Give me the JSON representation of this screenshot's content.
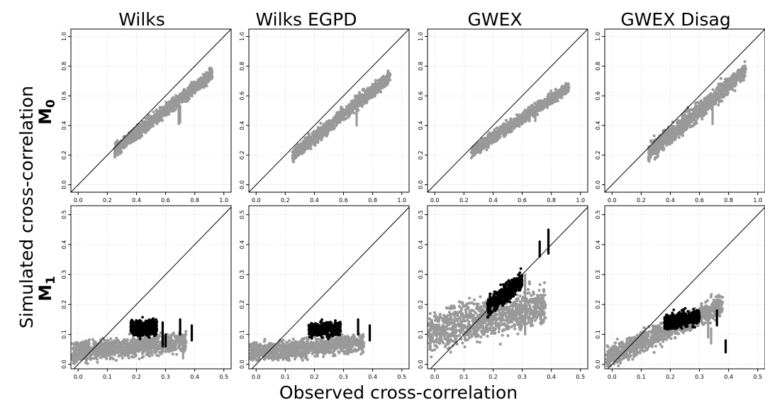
{
  "figure": {
    "column_titles": [
      "Wilks",
      "Wilks  EGPD",
      "GWEX",
      "GWEX  Disag"
    ],
    "row_labels": [
      {
        "base": "M",
        "sub": "0"
      },
      {
        "base": "M",
        "sub": "1"
      }
    ],
    "xlabel": "Observed cross-correlation",
    "ylabel": "Simulated cross-correlation"
  },
  "colors": {
    "gray_points": "#999999",
    "black_points": "#000000",
    "grid": "#d3d3d3",
    "identity_line": "#000000"
  },
  "chart_data": [
    {
      "type": "scatter",
      "panel": "Wilks / M0",
      "xlim": [
        -0.05,
        1.05
      ],
      "ylim": [
        -0.05,
        1.05
      ],
      "xticks": [
        "0.0",
        "0.2",
        "0.4",
        "0.6",
        "0.8",
        "1.0"
      ],
      "yticks": [
        "0.0",
        "0.2",
        "0.4",
        "0.6",
        "0.8",
        "1.0"
      ],
      "identity_line": true,
      "grid": true,
      "gray_cloud": {
        "x": [
          0.25,
          0.92
        ],
        "y_center": [
          0.23,
          0.75
        ],
        "y_halfwidth": 0.05
      },
      "gray_strips": [
        {
          "x": 0.69,
          "y": [
            0.41,
            0.52
          ]
        },
        {
          "x": 0.7,
          "y": [
            0.42,
            0.53
          ]
        }
      ],
      "black_cloud": null,
      "black_strips": []
    },
    {
      "type": "scatter",
      "panel": "Wilks  EGPD / M0",
      "xlim": [
        -0.05,
        1.05
      ],
      "ylim": [
        -0.05,
        1.05
      ],
      "xticks": [
        "0.0",
        "0.2",
        "0.4",
        "0.6",
        "0.8",
        "1.0"
      ],
      "yticks": [
        "0.0",
        "0.2",
        "0.4",
        "0.6",
        "0.8",
        "1.0"
      ],
      "identity_line": true,
      "grid": true,
      "gray_cloud": {
        "x": [
          0.25,
          0.92
        ],
        "y_center": [
          0.2,
          0.73
        ],
        "y_halfwidth": 0.05
      },
      "gray_strips": [
        {
          "x": 0.69,
          "y": [
            0.4,
            0.5
          ]
        }
      ],
      "black_cloud": null,
      "black_strips": []
    },
    {
      "type": "scatter",
      "panel": "GWEX / M0",
      "xlim": [
        -0.05,
        1.05
      ],
      "ylim": [
        -0.05,
        1.05
      ],
      "xticks": [
        "0.0",
        "0.2",
        "0.4",
        "0.6",
        "0.8",
        "1.0"
      ],
      "yticks": [
        "0.0",
        "0.2",
        "0.4",
        "0.6",
        "0.8",
        "1.0"
      ],
      "identity_line": true,
      "grid": true,
      "gray_cloud": {
        "x": [
          0.25,
          0.92
        ],
        "y_center": [
          0.22,
          0.66
        ],
        "y_halfwidth": 0.045
      },
      "gray_strips": [
        {
          "x": 0.69,
          "y": [
            0.43,
            0.5
          ]
        }
      ],
      "black_cloud": null,
      "black_strips": []
    },
    {
      "type": "scatter",
      "panel": "GWEX  Disag / M0",
      "xlim": [
        -0.05,
        1.05
      ],
      "ylim": [
        -0.05,
        1.05
      ],
      "xticks": [
        "0.0",
        "0.2",
        "0.4",
        "0.6",
        "0.8",
        "1.0"
      ],
      "yticks": [
        "0.0",
        "0.2",
        "0.4",
        "0.6",
        "0.8",
        "1.0"
      ],
      "identity_line": true,
      "grid": true,
      "gray_cloud": {
        "x": [
          0.25,
          0.92
        ],
        "y_center": [
          0.21,
          0.77
        ],
        "y_halfwidth": 0.07
      },
      "gray_strips": [
        {
          "x": 0.69,
          "y": [
            0.41,
            0.55
          ]
        }
      ],
      "black_cloud": null,
      "black_strips": []
    },
    {
      "type": "scatter",
      "panel": "Wilks / M1",
      "xlim": [
        -0.025,
        0.525
      ],
      "ylim": [
        -0.015,
        0.53
      ],
      "xticks": [
        "0.0",
        "0.1",
        "0.2",
        "0.3",
        "0.4",
        "0.5"
      ],
      "yticks": [
        "0.0",
        "0.1",
        "0.2",
        "0.3",
        "0.4",
        "0.5"
      ],
      "identity_line": true,
      "grid": true,
      "gray_cloud": {
        "x": [
          -0.02,
          0.37
        ],
        "y_center": [
          0.04,
          0.075
        ],
        "y_halfwidth": 0.038
      },
      "gray_strips": [
        {
          "x": 0.36,
          "y": [
            0.02,
            0.07
          ]
        }
      ],
      "black_cloud": {
        "x": [
          0.18,
          0.27
        ],
        "y_center": [
          0.12,
          0.125
        ],
        "y_halfwidth": 0.03
      },
      "black_strips": [
        {
          "x": 0.29,
          "y": [
            0.06,
            0.14
          ]
        },
        {
          "x": 0.3,
          "y": [
            0.06,
            0.1
          ]
        },
        {
          "x": 0.35,
          "y": [
            0.1,
            0.15
          ]
        },
        {
          "x": 0.39,
          "y": [
            0.08,
            0.13
          ]
        }
      ]
    },
    {
      "type": "scatter",
      "panel": "Wilks  EGPD / M1",
      "xlim": [
        -0.025,
        0.525
      ],
      "ylim": [
        -0.015,
        0.53
      ],
      "xticks": [
        "0.0",
        "0.1",
        "0.2",
        "0.3",
        "0.4",
        "0.5"
      ],
      "yticks": [
        "0.0",
        "0.1",
        "0.2",
        "0.3",
        "0.4",
        "0.5"
      ],
      "identity_line": true,
      "grid": true,
      "gray_cloud": {
        "x": [
          -0.02,
          0.37
        ],
        "y_center": [
          0.04,
          0.07
        ],
        "y_halfwidth": 0.035
      },
      "gray_strips": [],
      "black_cloud": {
        "x": [
          0.18,
          0.29
        ],
        "y_center": [
          0.115,
          0.12
        ],
        "y_halfwidth": 0.028
      },
      "black_strips": [
        {
          "x": 0.35,
          "y": [
            0.1,
            0.15
          ]
        },
        {
          "x": 0.39,
          "y": [
            0.08,
            0.13
          ]
        }
      ]
    },
    {
      "type": "scatter",
      "panel": "GWEX / M1",
      "xlim": [
        -0.025,
        0.525
      ],
      "ylim": [
        -0.015,
        0.53
      ],
      "xticks": [
        "0.0",
        "0.1",
        "0.2",
        "0.3",
        "0.4",
        "0.5"
      ],
      "yticks": [
        "0.0",
        "0.1",
        "0.2",
        "0.3",
        "0.4",
        "0.5"
      ],
      "identity_line": true,
      "grid": true,
      "gray_cloud": {
        "x": [
          -0.02,
          0.38
        ],
        "y_center": [
          0.11,
          0.2
        ],
        "y_halfwidth": 0.075
      },
      "gray_strips": [
        {
          "x": 0.31,
          "y": [
            0.1,
            0.3
          ]
        }
      ],
      "black_cloud": {
        "x": [
          0.18,
          0.3
        ],
        "y_center": [
          0.19,
          0.28
        ],
        "y_halfwidth": 0.035
      },
      "black_strips": [
        {
          "x": 0.36,
          "y": [
            0.36,
            0.41
          ]
        },
        {
          "x": 0.39,
          "y": [
            0.37,
            0.45
          ]
        }
      ]
    },
    {
      "type": "scatter",
      "panel": "GWEX  Disag / M1",
      "xlim": [
        -0.025,
        0.525
      ],
      "ylim": [
        -0.015,
        0.53
      ],
      "xticks": [
        "0.0",
        "0.1",
        "0.2",
        "0.3",
        "0.4",
        "0.5"
      ],
      "yticks": [
        "0.0",
        "0.1",
        "0.2",
        "0.3",
        "0.4",
        "0.5"
      ],
      "identity_line": true,
      "grid": true,
      "gray_cloud": {
        "x": [
          -0.02,
          0.38
        ],
        "y_center": [
          0.02,
          0.2
        ],
        "y_halfwidth": 0.04
      },
      "gray_strips": [
        {
          "x": 0.33,
          "y": [
            0.09,
            0.17
          ]
        },
        {
          "x": 0.34,
          "y": [
            0.07,
            0.12
          ]
        }
      ],
      "black_cloud": {
        "x": [
          0.18,
          0.3
        ],
        "y_center": [
          0.14,
          0.16
        ],
        "y_halfwidth": 0.03
      },
      "black_strips": [
        {
          "x": 0.36,
          "y": [
            0.13,
            0.18
          ]
        },
        {
          "x": 0.39,
          "y": [
            0.04,
            0.08
          ]
        }
      ]
    }
  ]
}
